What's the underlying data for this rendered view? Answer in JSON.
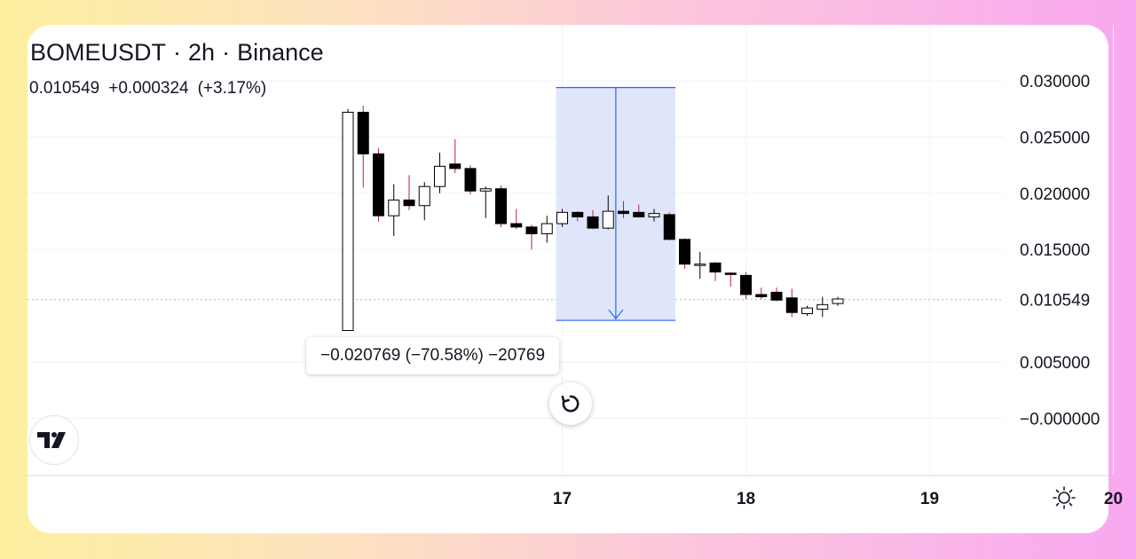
{
  "header": {
    "symbol": "BOMEUSDT",
    "interval": "2h",
    "exchange": "Binance",
    "separator": "·",
    "last_price": "0.010549",
    "change": "+0.000324",
    "change_pct": "(+3.17%)"
  },
  "measure": {
    "label": "−0.020769 (−70.58%) −20769"
  },
  "colors": {
    "measure_fill": "#dfe6fc",
    "measure_line": "#2962ff",
    "wick_up": "#000000",
    "wick_down": "#c2185b",
    "candle_up_fill": "#ffffff",
    "candle_down_fill": "#000000",
    "grid": "#f0f3fa"
  },
  "icons": {
    "reset": "reset-icon",
    "logo": "tradingview-logo",
    "settings": "sun-settings-icon"
  },
  "chart_data": {
    "type": "candlestick",
    "x_axis": {
      "ticks": [
        "17",
        "18",
        "19",
        "20"
      ],
      "tick_values": [
        16.0,
        28.0,
        40.0,
        52.0
      ]
    },
    "y_axis": {
      "ticks": [
        "0.030000",
        "0.025000",
        "0.020000",
        "0.015000",
        "0.010549",
        "0.005000",
        "−0.000000"
      ],
      "tick_values": [
        0.03,
        0.025,
        0.02,
        0.015,
        0.010549,
        0.005,
        0.0
      ],
      "range": [
        -0.005,
        0.0325
      ]
    },
    "last_price_marker": 0.010549,
    "measure": {
      "x_from": 13.6,
      "x_to": 21.4,
      "price_from": 0.0294,
      "price_to": 0.0087
    },
    "candles": [
      {
        "o": 0.0078,
        "h": 0.0275,
        "l": 0.0078,
        "c": 0.0272
      },
      {
        "o": 0.0272,
        "h": 0.0278,
        "l": 0.0205,
        "c": 0.0235
      },
      {
        "o": 0.0235,
        "h": 0.024,
        "l": 0.0175,
        "c": 0.018
      },
      {
        "o": 0.018,
        "h": 0.0208,
        "l": 0.0162,
        "c": 0.0194
      },
      {
        "o": 0.0194,
        "h": 0.0216,
        "l": 0.0185,
        "c": 0.0189
      },
      {
        "o": 0.0189,
        "h": 0.021,
        "l": 0.0176,
        "c": 0.0206
      },
      {
        "o": 0.0206,
        "h": 0.0236,
        "l": 0.02,
        "c": 0.0224
      },
      {
        "o": 0.0226,
        "h": 0.0248,
        "l": 0.0218,
        "c": 0.0222
      },
      {
        "o": 0.0222,
        "h": 0.0225,
        "l": 0.0199,
        "c": 0.0202
      },
      {
        "o": 0.0202,
        "h": 0.0206,
        "l": 0.0178,
        "c": 0.0204
      },
      {
        "o": 0.0204,
        "h": 0.0207,
        "l": 0.017,
        "c": 0.0173
      },
      {
        "o": 0.0173,
        "h": 0.0186,
        "l": 0.0168,
        "c": 0.017
      },
      {
        "o": 0.017,
        "h": 0.0172,
        "l": 0.015,
        "c": 0.0164
      },
      {
        "o": 0.0164,
        "h": 0.018,
        "l": 0.0156,
        "c": 0.0173
      },
      {
        "o": 0.0173,
        "h": 0.0186,
        "l": 0.017,
        "c": 0.0183
      },
      {
        "o": 0.0183,
        "h": 0.0184,
        "l": 0.0175,
        "c": 0.0179
      },
      {
        "o": 0.0179,
        "h": 0.0185,
        "l": 0.0168,
        "c": 0.0169
      },
      {
        "o": 0.0169,
        "h": 0.0198,
        "l": 0.0168,
        "c": 0.0184
      },
      {
        "o": 0.0184,
        "h": 0.0193,
        "l": 0.0178,
        "c": 0.0182
      },
      {
        "o": 0.0183,
        "h": 0.019,
        "l": 0.0179,
        "c": 0.0179
      },
      {
        "o": 0.0179,
        "h": 0.0186,
        "l": 0.0175,
        "c": 0.0182
      },
      {
        "o": 0.0181,
        "h": 0.0183,
        "l": 0.0158,
        "c": 0.0159
      },
      {
        "o": 0.0159,
        "h": 0.016,
        "l": 0.0133,
        "c": 0.0137
      },
      {
        "o": 0.0137,
        "h": 0.0148,
        "l": 0.0124,
        "c": 0.0137
      },
      {
        "o": 0.0138,
        "h": 0.0139,
        "l": 0.0122,
        "c": 0.013
      },
      {
        "o": 0.0129,
        "h": 0.013,
        "l": 0.0117,
        "c": 0.0128
      },
      {
        "o": 0.0127,
        "h": 0.013,
        "l": 0.0106,
        "c": 0.011
      },
      {
        "o": 0.011,
        "h": 0.0116,
        "l": 0.0106,
        "c": 0.0108
      },
      {
        "o": 0.0112,
        "h": 0.0116,
        "l": 0.0104,
        "c": 0.0105
      },
      {
        "o": 0.0107,
        "h": 0.0115,
        "l": 0.009,
        "c": 0.0094
      },
      {
        "o": 0.0093,
        "h": 0.01,
        "l": 0.0091,
        "c": 0.0098
      },
      {
        "o": 0.0097,
        "h": 0.0108,
        "l": 0.009,
        "c": 0.0101
      },
      {
        "o": 0.0102,
        "h": 0.0108,
        "l": 0.01,
        "c": 0.0106
      }
    ]
  }
}
